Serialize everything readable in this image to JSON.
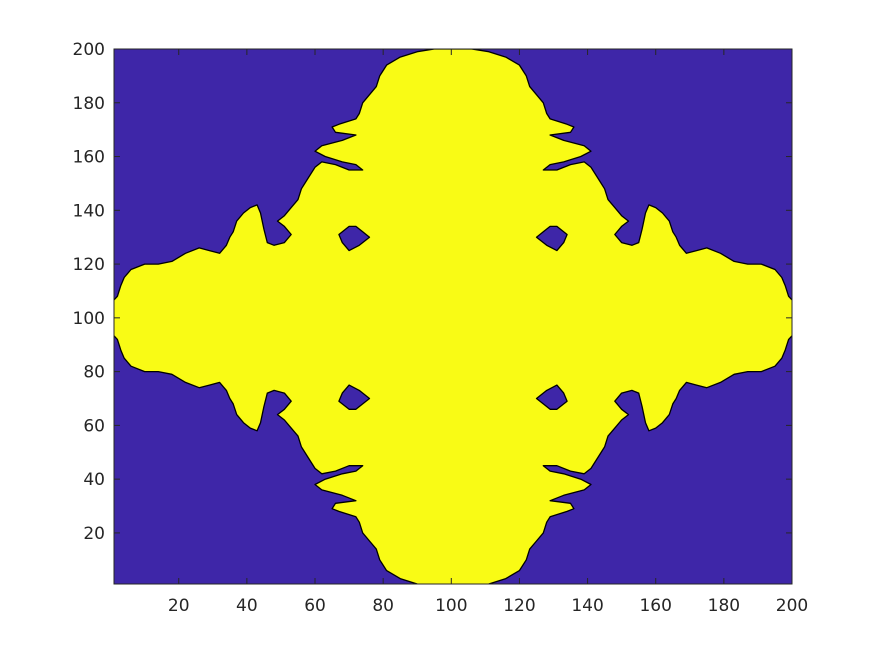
{
  "chart_data": {
    "type": "heatmap",
    "title": "",
    "xlabel": "",
    "ylabel": "",
    "xlim": [
      1,
      200
    ],
    "ylim": [
      1,
      200
    ],
    "grid": false,
    "colors": {
      "background_region": "#3e26a8",
      "foreground_region": "#f9fb15",
      "boundary": "#000000",
      "axes": "#262626"
    },
    "x_ticks": [
      {
        "value": 20,
        "label": "20"
      },
      {
        "value": 40,
        "label": "40"
      },
      {
        "value": 60,
        "label": "60"
      },
      {
        "value": 80,
        "label": "80"
      },
      {
        "value": 100,
        "label": "100"
      },
      {
        "value": 120,
        "label": "120"
      },
      {
        "value": 140,
        "label": "140"
      },
      {
        "value": 160,
        "label": "160"
      },
      {
        "value": 180,
        "label": "180"
      },
      {
        "value": 200,
        "label": "200"
      }
    ],
    "y_ticks": [
      {
        "value": 20,
        "label": "20"
      },
      {
        "value": 40,
        "label": "40"
      },
      {
        "value": 60,
        "label": "60"
      },
      {
        "value": 80,
        "label": "80"
      },
      {
        "value": 100,
        "label": "100"
      },
      {
        "value": 120,
        "label": "120"
      },
      {
        "value": 140,
        "label": "140"
      },
      {
        "value": 160,
        "label": "160"
      },
      {
        "value": 180,
        "label": "180"
      },
      {
        "value": 200,
        "label": "200"
      }
    ],
    "shape_left_half": [
      [
        95,
        200
      ],
      [
        90,
        199
      ],
      [
        85,
        197
      ],
      [
        81,
        194
      ],
      [
        79,
        190
      ],
      [
        78,
        186
      ],
      [
        76,
        183
      ],
      [
        74,
        180
      ],
      [
        73,
        176
      ],
      [
        72,
        174
      ],
      [
        67,
        172
      ],
      [
        65,
        171
      ],
      [
        66,
        169
      ],
      [
        72,
        168
      ],
      [
        68,
        166
      ],
      [
        62,
        164
      ],
      [
        60,
        162
      ],
      [
        63,
        160
      ],
      [
        68,
        158
      ],
      [
        72,
        157
      ],
      [
        74,
        155
      ],
      [
        70,
        155
      ],
      [
        66,
        157
      ],
      [
        62,
        158
      ],
      [
        60,
        156
      ],
      [
        58,
        152
      ],
      [
        56,
        148
      ],
      [
        55,
        144
      ],
      [
        53,
        141
      ],
      [
        51,
        138
      ],
      [
        49,
        136
      ],
      [
        51,
        134
      ],
      [
        53,
        131
      ],
      [
        51,
        128
      ],
      [
        48,
        127
      ],
      [
        46,
        128
      ],
      [
        45,
        133
      ],
      [
        44,
        139
      ],
      [
        43,
        142
      ],
      [
        41,
        141
      ],
      [
        39,
        139
      ],
      [
        37,
        136
      ],
      [
        36,
        132
      ],
      [
        35,
        130
      ],
      [
        34,
        127
      ],
      [
        32,
        124
      ],
      [
        29,
        125
      ],
      [
        26,
        126
      ],
      [
        22,
        124
      ],
      [
        18,
        121
      ],
      [
        14,
        120
      ],
      [
        10,
        120
      ],
      [
        6,
        118
      ],
      [
        4,
        115
      ],
      [
        3,
        112
      ],
      [
        2,
        108
      ],
      [
        0.5,
        106
      ],
      [
        0.5,
        100
      ],
      [
        0.5,
        94
      ],
      [
        2,
        92
      ],
      [
        3,
        88
      ],
      [
        4,
        85
      ],
      [
        6,
        82
      ],
      [
        10,
        80
      ],
      [
        14,
        80
      ],
      [
        18,
        79
      ],
      [
        22,
        76
      ],
      [
        26,
        74
      ],
      [
        29,
        75
      ],
      [
        32,
        76
      ],
      [
        34,
        73
      ],
      [
        35,
        70
      ],
      [
        36,
        68
      ],
      [
        37,
        64
      ],
      [
        39,
        61
      ],
      [
        41,
        59
      ],
      [
        43,
        58
      ],
      [
        44,
        61
      ],
      [
        45,
        67
      ],
      [
        46,
        72
      ],
      [
        48,
        73
      ],
      [
        51,
        72
      ],
      [
        53,
        69
      ],
      [
        51,
        66
      ],
      [
        49,
        64
      ],
      [
        51,
        62
      ],
      [
        53,
        59
      ],
      [
        55,
        56
      ],
      [
        56,
        52
      ],
      [
        58,
        48
      ],
      [
        60,
        44
      ],
      [
        62,
        42
      ],
      [
        66,
        43
      ],
      [
        70,
        45
      ],
      [
        74,
        45
      ],
      [
        72,
        43
      ],
      [
        68,
        42
      ],
      [
        63,
        40
      ],
      [
        60,
        38
      ],
      [
        62,
        36
      ],
      [
        68,
        34
      ],
      [
        72,
        32
      ],
      [
        66,
        31
      ],
      [
        65,
        29
      ],
      [
        67,
        28
      ],
      [
        72,
        26
      ],
      [
        73,
        24
      ],
      [
        74,
        20
      ],
      [
        76,
        17
      ],
      [
        78,
        14
      ],
      [
        79,
        10
      ],
      [
        81,
        6
      ],
      [
        85,
        3
      ],
      [
        90,
        1
      ],
      [
        95,
        0.5
      ]
    ],
    "holes_left": [
      [
        [
          67,
          131
        ],
        [
          70,
          134
        ],
        [
          72,
          134
        ],
        [
          74,
          132
        ],
        [
          76,
          130
        ],
        [
          73,
          127
        ],
        [
          70,
          125
        ],
        [
          68,
          128
        ]
      ],
      [
        [
          67,
          69
        ],
        [
          70,
          66
        ],
        [
          72,
          66
        ],
        [
          74,
          68
        ],
        [
          76,
          70
        ],
        [
          73,
          73
        ],
        [
          70,
          75
        ],
        [
          68,
          72
        ]
      ]
    ]
  }
}
